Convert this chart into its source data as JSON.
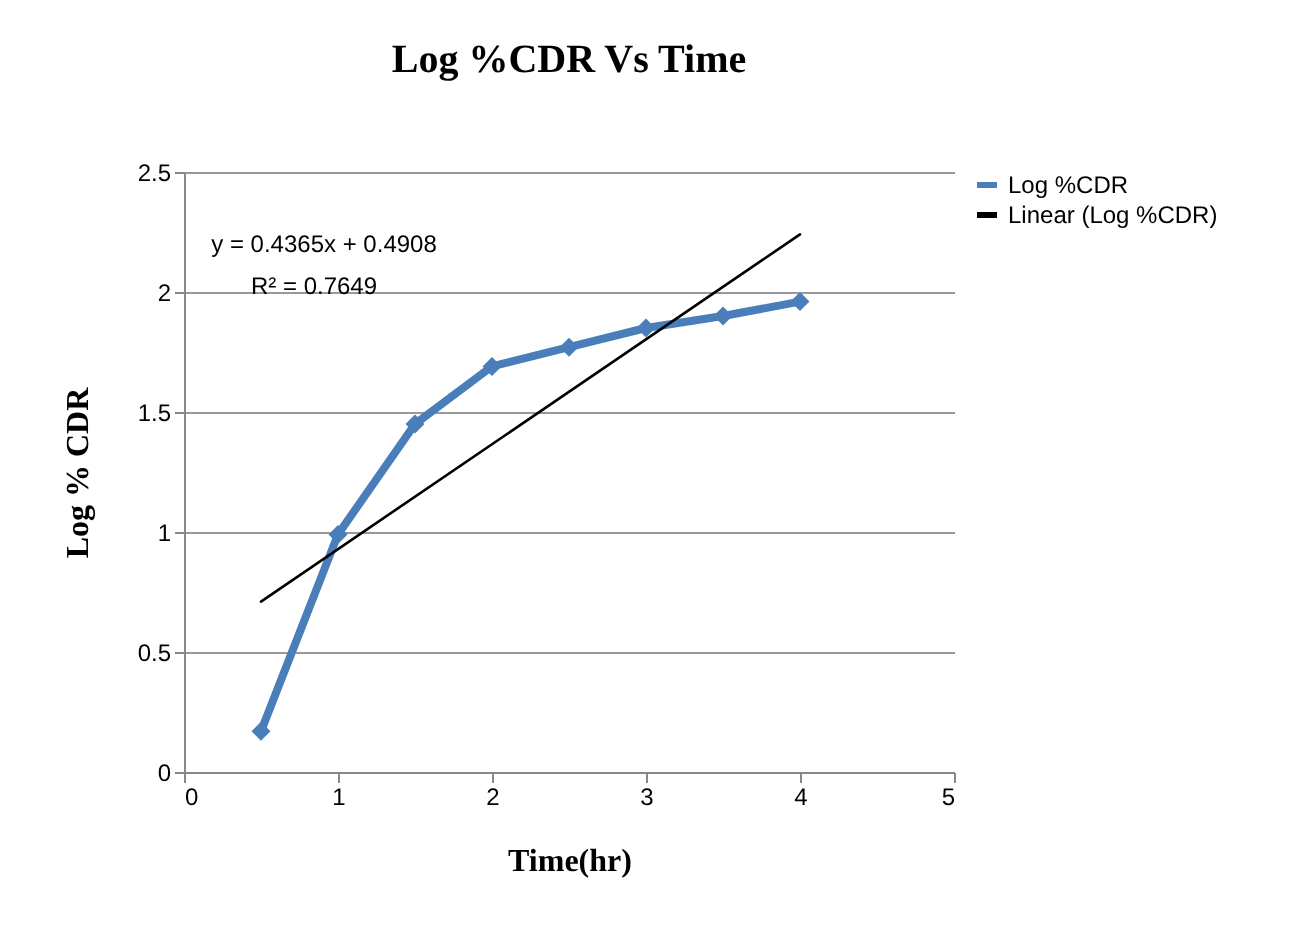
{
  "chart_data": {
    "type": "line",
    "title": "Log %CDR Vs Time",
    "xlabel": "Time(hr)",
    "ylabel": "Log % CDR",
    "x": [
      0.5,
      1,
      1.5,
      2,
      2.5,
      3,
      3.5,
      4
    ],
    "series": [
      {
        "name": "Log %CDR",
        "color": "#4a7ebb",
        "values": [
          0.17,
          0.99,
          1.45,
          1.69,
          1.77,
          1.85,
          1.9,
          1.96
        ],
        "marker": "diamond"
      },
      {
        "name": "Linear (Log %CDR)",
        "color": "#000000",
        "type": "line",
        "x": [
          0.5,
          4
        ],
        "values": [
          0.71,
          2.24
        ],
        "marker": "none"
      }
    ],
    "annotations": [
      "y = 0.4365x + 0.4908",
      "R² = 0.7649"
    ],
    "xlim": [
      0,
      5
    ],
    "xticks": [
      0,
      1,
      2,
      3,
      4,
      5
    ],
    "ylim": [
      0,
      2.5
    ],
    "yticks": [
      0,
      0.5,
      1,
      1.5,
      2,
      2.5
    ],
    "grid": "y",
    "legend": "right",
    "line_style": "solid"
  }
}
